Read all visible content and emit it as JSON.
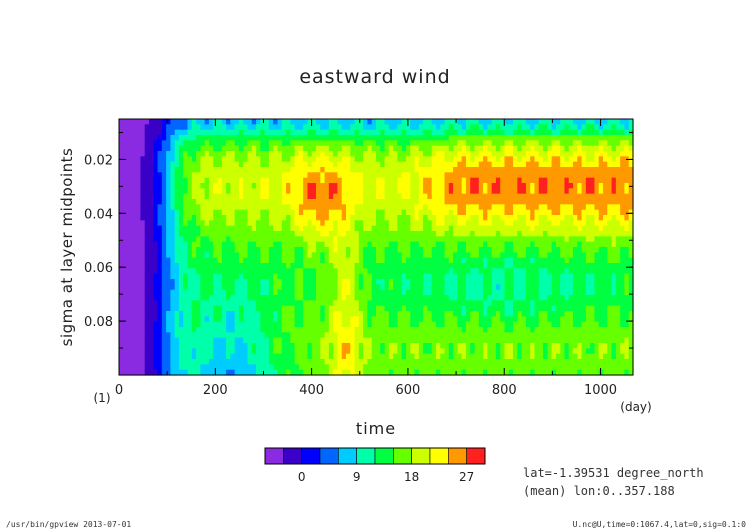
{
  "chart_data": {
    "type": "heatmap",
    "title": "eastward wind",
    "xlabel": "time",
    "ylabel": "sigma at layer midpoints",
    "x_unit": "(day)",
    "y_unit": "(1)",
    "xlim": [
      0,
      1067.4
    ],
    "ylim": [
      0.005,
      0.1
    ],
    "y_inverted": true,
    "x_ticks": [
      0,
      200,
      400,
      600,
      800,
      1000
    ],
    "x_tick_labels": [
      "0",
      "200",
      "400",
      "600",
      "800",
      "1000"
    ],
    "y_ticks": [
      0.02,
      0.04,
      0.06,
      0.08
    ],
    "y_tick_labels": [
      "0.02",
      "0.04",
      "0.06",
      "0.08"
    ],
    "colorbar": {
      "levels": [
        -6,
        -3,
        0,
        3,
        6,
        9,
        12,
        15,
        18,
        21,
        24,
        27,
        30
      ],
      "colors": [
        "#8a2be2",
        "#3a00c8",
        "#0000ff",
        "#0066ff",
        "#00ccff",
        "#00ffaa",
        "#00ff40",
        "#66ff00",
        "#ccff00",
        "#ffff00",
        "#ff9900",
        "#ff2020",
        "#ffa0a0"
      ],
      "tick_labels": [
        "0",
        "9",
        "18",
        "27"
      ],
      "tick_values": [
        0,
        9,
        18,
        27
      ]
    },
    "annotation_lines": [
      "lat=-1.39531 degree_north",
      "(mean) lon:0..357.188"
    ],
    "grid": false
  },
  "footer": {
    "left": "/usr/bin/gpview  2013-07-01",
    "right": "U.nc@U,time=0:1067.4,lat=0,sig=0.1:0"
  }
}
